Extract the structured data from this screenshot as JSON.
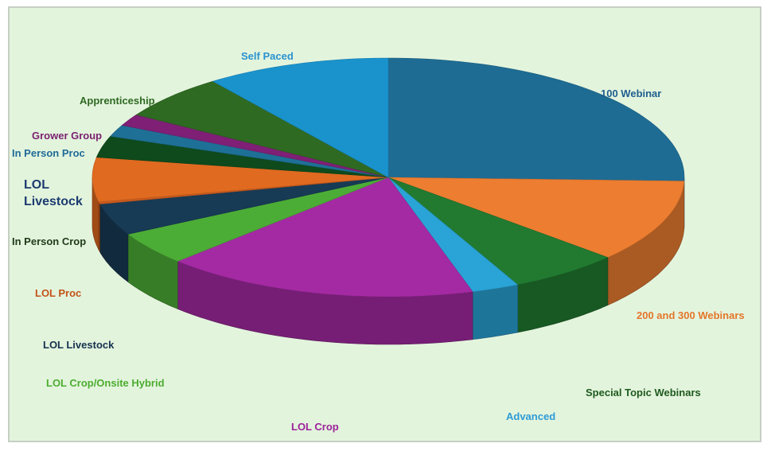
{
  "chart_data": {
    "type": "pie",
    "style": "3d-exploded-tilted",
    "slices": [
      {
        "label": "100 Webinar",
        "value": 25.5,
        "color": "#1e6c93",
        "label_color": "#1f5f8f"
      },
      {
        "label": "200 and 300 Webinars",
        "value": 11.2,
        "color": "#ec7d31",
        "label_color": "#e4762a"
      },
      {
        "label": "Special Topic Webinars",
        "value": 6.1,
        "color": "#217a30",
        "label_color": "#1e5a1e"
      },
      {
        "label": "Advanced",
        "value": 2.6,
        "color": "#2aa3d6",
        "label_color": "#2d9bd6"
      },
      {
        "label": "LOL Crop",
        "value": 17.2,
        "color": "#a42aa3",
        "label_color": "#9b239a"
      },
      {
        "label": "LOL Crop/Onsite Hybrid",
        "value": 4.5,
        "color": "#4cad36",
        "label_color": "#4cad2f"
      },
      {
        "label": "LOL Livestock",
        "value": 4.3,
        "color": "#173a55",
        "label_color": "#16324f"
      },
      {
        "label": "LOL Proc",
        "value": 0.3,
        "color": "#c85a1e",
        "label_color": "#c25418"
      },
      {
        "label": "In Person Crop",
        "value": 6.0,
        "color": "#e06a20",
        "label_color": "#1f3a18"
      },
      {
        "label": "LOL Livestock",
        "value": 2.9,
        "color": "#0e4a1c",
        "label_color": "#1b3b6f"
      },
      {
        "label": "In Person Proc",
        "value": 1.6,
        "color": "#1e7096",
        "label_color": "#1f6b98"
      },
      {
        "label": "Grower Group",
        "value": 1.6,
        "color": "#7f1f76",
        "label_color": "#7a1f70"
      },
      {
        "label": "Apprenticeship",
        "value": 6.1,
        "color": "#2f6a22",
        "label_color": "#2f6a22"
      },
      {
        "label": "Self Paced",
        "value": 10.1,
        "color": "#1a93cd",
        "label_color": "#2a93cf"
      }
    ]
  }
}
